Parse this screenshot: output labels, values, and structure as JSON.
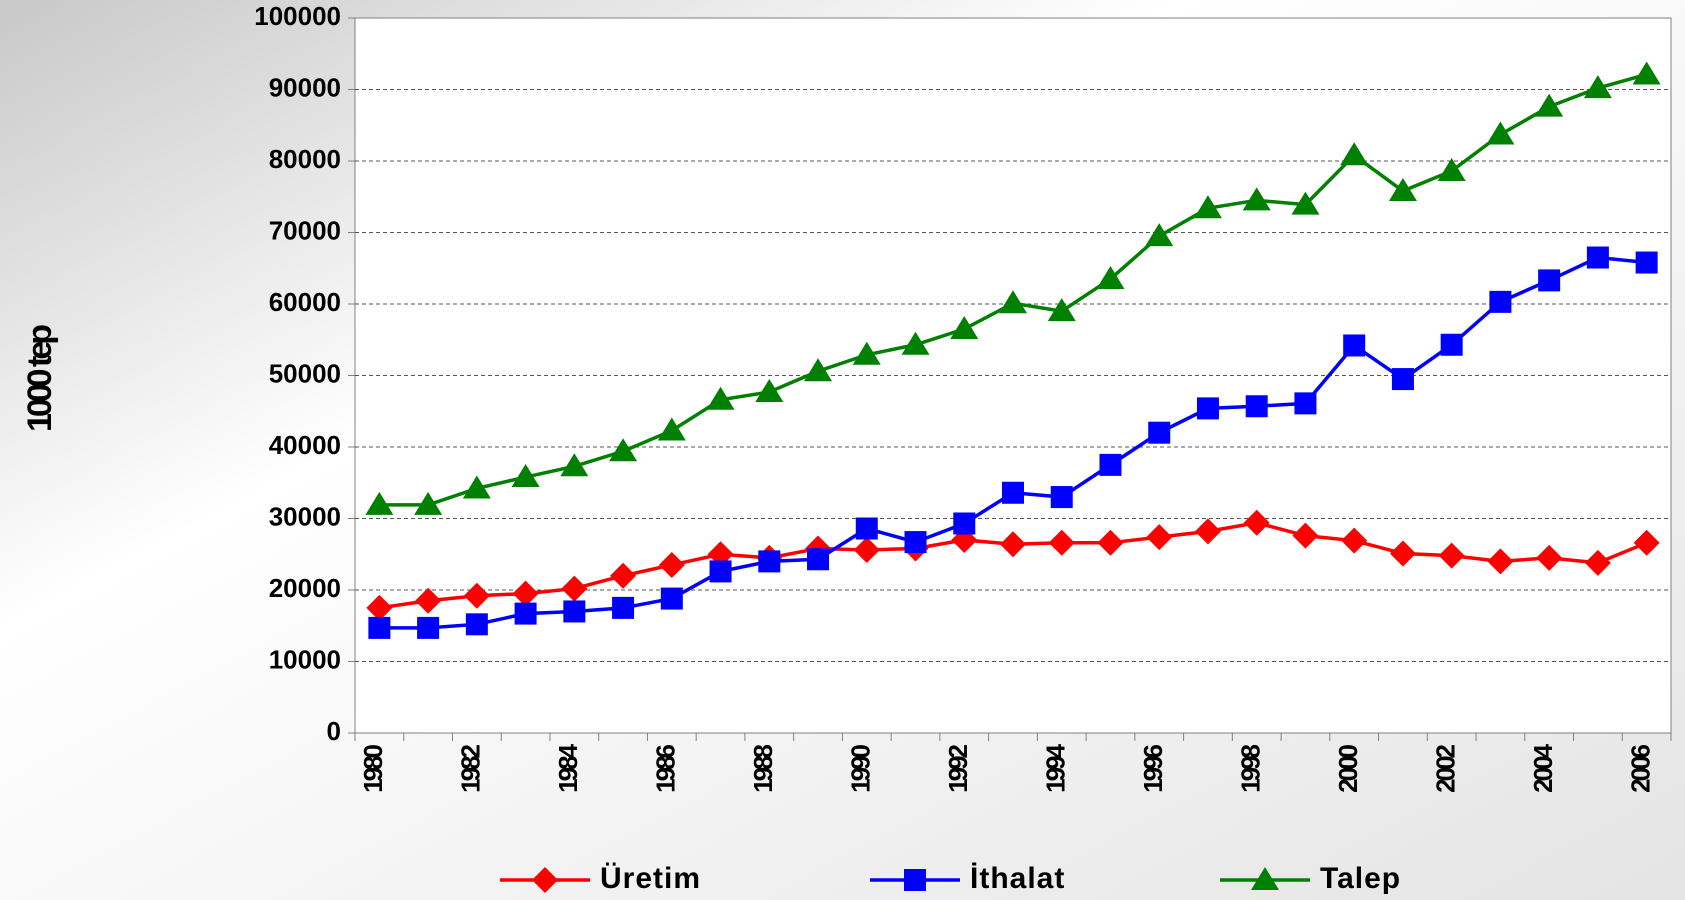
{
  "chart_data": {
    "type": "line",
    "y_label": "1000 tep",
    "categories": [
      "1980",
      null,
      "1982",
      null,
      "1984",
      null,
      "1986",
      null,
      "1988",
      null,
      "1990",
      null,
      "1992",
      null,
      "1994",
      null,
      "1996",
      null,
      "1998",
      null,
      "2000",
      null,
      "2002",
      null,
      "2004",
      null,
      "2006"
    ],
    "series": [
      {
        "name": "Üretim",
        "color": "#ff0000",
        "marker": "diamond",
        "values": [
          17500,
          18500,
          19200,
          19500,
          20200,
          22000,
          23500,
          25000,
          24500,
          25800,
          25600,
          25800,
          27000,
          26400,
          26600,
          26600,
          27400,
          28200,
          29400,
          27600,
          26900,
          25100,
          24800,
          24000,
          24500,
          23800,
          26600
        ]
      },
      {
        "name": "İthalat",
        "color": "#0000ff",
        "marker": "square",
        "values": [
          14700,
          14700,
          15200,
          16700,
          17000,
          17500,
          18800,
          22600,
          24000,
          24300,
          28600,
          26700,
          29300,
          33600,
          33000,
          37500,
          42000,
          45400,
          45700,
          46100,
          54200,
          49500,
          54300,
          60300,
          63300,
          66500,
          65800
        ]
      },
      {
        "name": "Talep",
        "color": "#008000",
        "marker": "triangle",
        "values": [
          31900,
          31900,
          34200,
          35800,
          37300,
          39400,
          42300,
          46600,
          47700,
          50600,
          52900,
          54300,
          56500,
          60100,
          59000,
          63500,
          69500,
          73400,
          74500,
          73900,
          80800,
          75800,
          78600,
          83700,
          87600,
          90200,
          92100
        ]
      }
    ],
    "ylim": [
      0,
      100000
    ],
    "yticks": [
      0,
      10000,
      20000,
      30000,
      40000,
      50000,
      60000,
      70000,
      80000,
      90000,
      100000
    ],
    "grid": true,
    "legend": "bottom"
  }
}
